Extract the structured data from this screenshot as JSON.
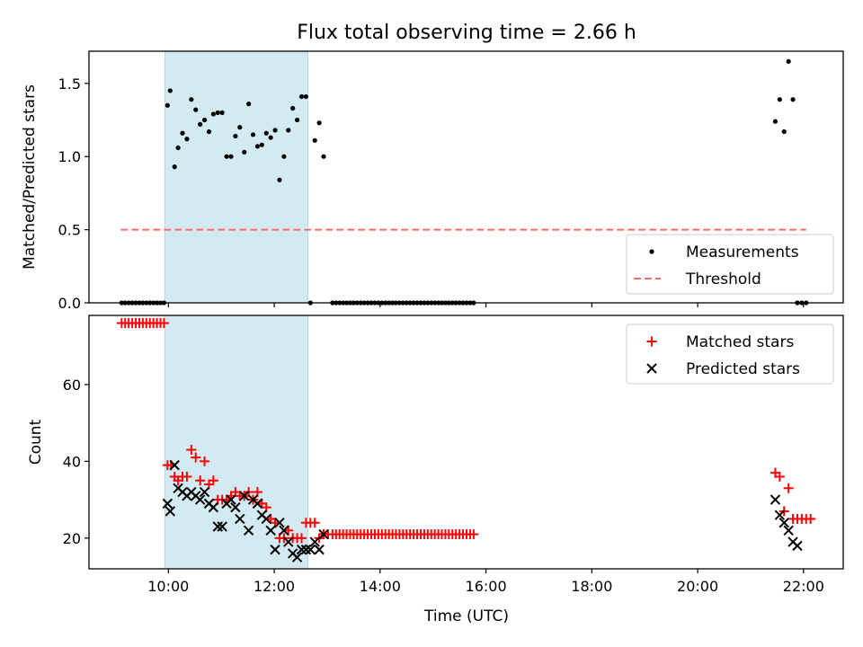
{
  "title": "Flux total observing time = 2.66 h",
  "xlabel": "Time (UTC)",
  "x_ticks": [
    "10:00",
    "12:00",
    "14:00",
    "16:00",
    "18:00",
    "20:00",
    "22:00"
  ],
  "colors": {
    "measurement": "#000000",
    "threshold": "#ff6b6b",
    "matched": "#ff0000",
    "predicted": "#000000",
    "observing_span": "#add8e6"
  },
  "chart_data": [
    {
      "type": "scatter",
      "ylabel": "Matched/Predicted stars",
      "xlim": [
        "08:30",
        "22:45"
      ],
      "ylim": [
        0,
        1.72
      ],
      "y_ticks": [
        "0.0",
        "0.5",
        "1.0",
        "1.5"
      ],
      "observing_span": [
        "09:56",
        "12:38"
      ],
      "legend": {
        "position": "lower-right",
        "entries": [
          "Measurements",
          "Threshold"
        ]
      },
      "threshold": {
        "value": 0.5,
        "x_range": [
          "09:06",
          "22:03"
        ]
      },
      "series": [
        {
          "name": "Measurements",
          "points": [
            [
              "09:07",
              0
            ],
            [
              "09:11",
              0
            ],
            [
              "09:15",
              0
            ],
            [
              "09:19",
              0
            ],
            [
              "09:23",
              0
            ],
            [
              "09:27",
              0
            ],
            [
              "09:31",
              0
            ],
            [
              "09:35",
              0
            ],
            [
              "09:39",
              0
            ],
            [
              "09:43",
              0
            ],
            [
              "09:47",
              0
            ],
            [
              "09:51",
              0
            ],
            [
              "09:55",
              0
            ],
            [
              "09:59",
              1.35
            ],
            [
              "10:02",
              1.45
            ],
            [
              "10:07",
              0.93
            ],
            [
              "10:11",
              1.06
            ],
            [
              "10:16",
              1.16
            ],
            [
              "10:21",
              1.12
            ],
            [
              "10:26",
              1.39
            ],
            [
              "10:31",
              1.32
            ],
            [
              "10:36",
              1.22
            ],
            [
              "10:41",
              1.25
            ],
            [
              "10:46",
              1.17
            ],
            [
              "10:51",
              1.29
            ],
            [
              "10:56",
              1.3
            ],
            [
              "11:01",
              1.3
            ],
            [
              "11:06",
              1.0
            ],
            [
              "11:11",
              1.0
            ],
            [
              "11:16",
              1.14
            ],
            [
              "11:21",
              1.2
            ],
            [
              "11:26",
              1.03
            ],
            [
              "11:31",
              1.36
            ],
            [
              "11:36",
              1.15
            ],
            [
              "11:41",
              1.07
            ],
            [
              "11:46",
              1.08
            ],
            [
              "11:51",
              1.16
            ],
            [
              "11:56",
              1.13
            ],
            [
              "12:01",
              1.18
            ],
            [
              "12:06",
              0.84
            ],
            [
              "12:11",
              1.0
            ],
            [
              "12:16",
              1.18
            ],
            [
              "12:21",
              1.33
            ],
            [
              "12:26",
              1.25
            ],
            [
              "12:31",
              1.41
            ],
            [
              "12:36",
              1.41
            ],
            [
              "12:41",
              0
            ],
            [
              "12:46",
              1.11
            ],
            [
              "12:51",
              1.23
            ],
            [
              "12:56",
              1.0
            ],
            [
              "13:06",
              0
            ],
            [
              "13:10",
              0
            ],
            [
              "13:14",
              0
            ],
            [
              "13:18",
              0
            ],
            [
              "13:22",
              0
            ],
            [
              "13:26",
              0
            ],
            [
              "13:30",
              0
            ],
            [
              "13:34",
              0
            ],
            [
              "13:38",
              0
            ],
            [
              "13:42",
              0
            ],
            [
              "13:46",
              0
            ],
            [
              "13:50",
              0
            ],
            [
              "13:54",
              0
            ],
            [
              "13:58",
              0
            ],
            [
              "14:02",
              0
            ],
            [
              "14:06",
              0
            ],
            [
              "14:10",
              0
            ],
            [
              "14:14",
              0
            ],
            [
              "14:18",
              0
            ],
            [
              "14:22",
              0
            ],
            [
              "14:26",
              0
            ],
            [
              "14:30",
              0
            ],
            [
              "14:34",
              0
            ],
            [
              "14:38",
              0
            ],
            [
              "14:42",
              0
            ],
            [
              "14:46",
              0
            ],
            [
              "14:50",
              0
            ],
            [
              "14:54",
              0
            ],
            [
              "14:58",
              0
            ],
            [
              "15:02",
              0
            ],
            [
              "15:06",
              0
            ],
            [
              "15:10",
              0
            ],
            [
              "15:14",
              0
            ],
            [
              "15:18",
              0
            ],
            [
              "15:22",
              0
            ],
            [
              "15:26",
              0
            ],
            [
              "15:30",
              0
            ],
            [
              "15:34",
              0
            ],
            [
              "15:38",
              0
            ],
            [
              "15:42",
              0
            ],
            [
              "15:46",
              0
            ],
            [
              "21:28",
              1.24
            ],
            [
              "21:33",
              1.39
            ],
            [
              "21:38",
              1.17
            ],
            [
              "21:43",
              1.65
            ],
            [
              "21:48",
              1.39
            ],
            [
              "21:53",
              0
            ],
            [
              "21:58",
              0
            ],
            [
              "22:03",
              0
            ]
          ]
        }
      ]
    },
    {
      "type": "scatter",
      "ylabel": "Count",
      "xlim": [
        "08:30",
        "22:45"
      ],
      "ylim": [
        12,
        78
      ],
      "y_ticks": [
        "20",
        "40",
        "60"
      ],
      "observing_span": [
        "09:56",
        "12:38"
      ],
      "legend": {
        "position": "upper-right",
        "entries": [
          "Matched stars",
          "Predicted stars"
        ]
      },
      "series": [
        {
          "name": "Matched stars",
          "points": [
            [
              "09:07",
              76
            ],
            [
              "09:11",
              76
            ],
            [
              "09:15",
              76
            ],
            [
              "09:19",
              76
            ],
            [
              "09:23",
              76
            ],
            [
              "09:27",
              76
            ],
            [
              "09:31",
              76
            ],
            [
              "09:35",
              76
            ],
            [
              "09:39",
              76
            ],
            [
              "09:43",
              76
            ],
            [
              "09:47",
              76
            ],
            [
              "09:51",
              76
            ],
            [
              "09:55",
              76
            ],
            [
              "09:59",
              39
            ],
            [
              "10:03",
              39
            ],
            [
              "10:07",
              36
            ],
            [
              "10:11",
              35
            ],
            [
              "10:16",
              36
            ],
            [
              "10:21",
              36
            ],
            [
              "10:26",
              43
            ],
            [
              "10:31",
              41
            ],
            [
              "10:36",
              35
            ],
            [
              "10:41",
              40
            ],
            [
              "10:46",
              34
            ],
            [
              "10:51",
              35
            ],
            [
              "10:56",
              30
            ],
            [
              "11:01",
              30
            ],
            [
              "11:06",
              30
            ],
            [
              "11:11",
              31
            ],
            [
              "11:16",
              32
            ],
            [
              "11:21",
              31
            ],
            [
              "11:26",
              31
            ],
            [
              "11:31",
              32
            ],
            [
              "11:36",
              30
            ],
            [
              "11:41",
              32
            ],
            [
              "11:46",
              29
            ],
            [
              "11:51",
              28
            ],
            [
              "11:56",
              25
            ],
            [
              "12:01",
              24
            ],
            [
              "12:06",
              20
            ],
            [
              "12:11",
              20
            ],
            [
              "12:16",
              22
            ],
            [
              "12:21",
              20
            ],
            [
              "12:26",
              20
            ],
            [
              "12:31",
              20
            ],
            [
              "12:36",
              24
            ],
            [
              "12:41",
              24
            ],
            [
              "12:46",
              24
            ],
            [
              "12:51",
              20
            ],
            [
              "12:56",
              21
            ],
            [
              "13:01",
              21
            ],
            [
              "13:06",
              21
            ],
            [
              "13:10",
              21
            ],
            [
              "13:14",
              21
            ],
            [
              "13:18",
              21
            ],
            [
              "13:22",
              21
            ],
            [
              "13:26",
              21
            ],
            [
              "13:30",
              21
            ],
            [
              "13:34",
              21
            ],
            [
              "13:38",
              21
            ],
            [
              "13:42",
              21
            ],
            [
              "13:46",
              21
            ],
            [
              "13:50",
              21
            ],
            [
              "13:54",
              21
            ],
            [
              "13:58",
              21
            ],
            [
              "14:02",
              21
            ],
            [
              "14:06",
              21
            ],
            [
              "14:10",
              21
            ],
            [
              "14:14",
              21
            ],
            [
              "14:18",
              21
            ],
            [
              "14:22",
              21
            ],
            [
              "14:26",
              21
            ],
            [
              "14:30",
              21
            ],
            [
              "14:34",
              21
            ],
            [
              "14:38",
              21
            ],
            [
              "14:42",
              21
            ],
            [
              "14:46",
              21
            ],
            [
              "14:50",
              21
            ],
            [
              "14:54",
              21
            ],
            [
              "14:58",
              21
            ],
            [
              "15:02",
              21
            ],
            [
              "15:06",
              21
            ],
            [
              "15:10",
              21
            ],
            [
              "15:14",
              21
            ],
            [
              "15:18",
              21
            ],
            [
              "15:22",
              21
            ],
            [
              "15:26",
              21
            ],
            [
              "15:30",
              21
            ],
            [
              "15:34",
              21
            ],
            [
              "15:38",
              21
            ],
            [
              "15:42",
              21
            ],
            [
              "15:46",
              21
            ],
            [
              "21:28",
              37
            ],
            [
              "21:33",
              36
            ],
            [
              "21:38",
              27
            ],
            [
              "21:43",
              33
            ],
            [
              "21:48",
              25
            ],
            [
              "21:53",
              25
            ],
            [
              "21:58",
              25
            ],
            [
              "22:03",
              25
            ],
            [
              "22:08",
              25
            ]
          ]
        },
        {
          "name": "Predicted stars",
          "points": [
            [
              "09:59",
              29
            ],
            [
              "10:02",
              27
            ],
            [
              "10:07",
              39
            ],
            [
              "10:11",
              33
            ],
            [
              "10:16",
              32
            ],
            [
              "10:21",
              31
            ],
            [
              "10:26",
              32
            ],
            [
              "10:31",
              31
            ],
            [
              "10:36",
              30
            ],
            [
              "10:41",
              32
            ],
            [
              "10:46",
              29
            ],
            [
              "10:51",
              28
            ],
            [
              "10:56",
              23
            ],
            [
              "11:01",
              23
            ],
            [
              "11:06",
              29
            ],
            [
              "11:11",
              30
            ],
            [
              "11:16",
              28
            ],
            [
              "11:21",
              25
            ],
            [
              "11:26",
              31
            ],
            [
              "11:31",
              22
            ],
            [
              "11:36",
              30
            ],
            [
              "11:41",
              29
            ],
            [
              "11:46",
              26
            ],
            [
              "11:51",
              25
            ],
            [
              "11:56",
              22
            ],
            [
              "12:01",
              17
            ],
            [
              "12:06",
              24
            ],
            [
              "12:11",
              22
            ],
            [
              "12:16",
              19
            ],
            [
              "12:21",
              16
            ],
            [
              "12:26",
              15
            ],
            [
              "12:31",
              17
            ],
            [
              "12:36",
              17
            ],
            [
              "12:41",
              17
            ],
            [
              "12:46",
              19
            ],
            [
              "12:51",
              17
            ],
            [
              "12:56",
              21
            ],
            [
              "21:28",
              30
            ],
            [
              "21:33",
              26
            ],
            [
              "21:38",
              24
            ],
            [
              "21:43",
              22
            ],
            [
              "21:48",
              19
            ],
            [
              "21:53",
              18
            ]
          ]
        }
      ]
    }
  ]
}
